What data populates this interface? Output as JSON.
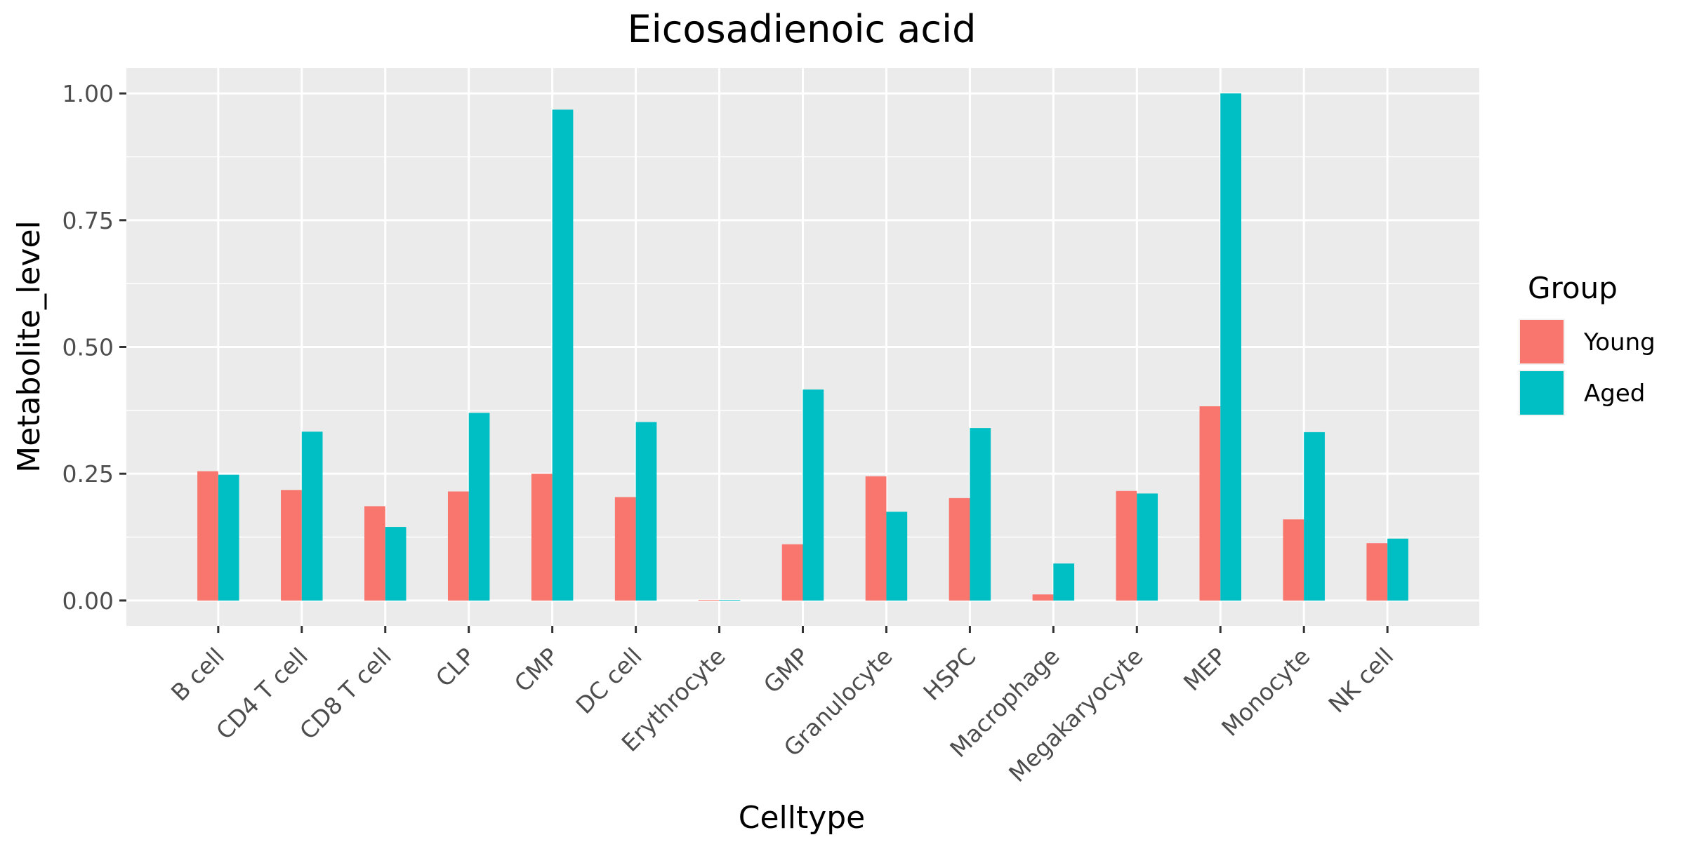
{
  "chart_data": {
    "type": "bar",
    "title": "Eicosadienoic acid",
    "xlabel": "Celltype",
    "ylabel": "Metabolite_level",
    "categories": [
      "B cell",
      "CD4 T cell",
      "CD8 T cell",
      "CLP",
      "CMP",
      "DC cell",
      "Erythrocyte",
      "GMP",
      "Granulocyte",
      "HSPC",
      "Macrophage",
      "Megakaryocyte",
      "MEP",
      "Monocyte",
      "NK cell"
    ],
    "series": [
      {
        "name": "Young",
        "color": "#F8766D",
        "values": [
          0.255,
          0.218,
          0.186,
          0.215,
          0.25,
          0.204,
          0.001,
          0.111,
          0.245,
          0.202,
          0.012,
          0.216,
          0.383,
          0.16,
          0.113
        ]
      },
      {
        "name": "Aged",
        "color": "#00BFC4",
        "values": [
          0.248,
          0.333,
          0.145,
          0.37,
          0.968,
          0.352,
          0.0,
          0.416,
          0.175,
          0.34,
          0.073,
          0.211,
          1.0,
          0.332,
          0.122
        ]
      }
    ],
    "ylim": [
      -0.05,
      1.05
    ],
    "yticks": [
      0.0,
      0.25,
      0.5,
      0.75,
      1.0
    ],
    "ytick_labels": [
      "0.00",
      "0.25",
      "0.50",
      "0.75",
      "1.00"
    ],
    "grid": true,
    "legend": {
      "title": "Group",
      "position": "right"
    },
    "panel_color": "#EBEBEB"
  }
}
